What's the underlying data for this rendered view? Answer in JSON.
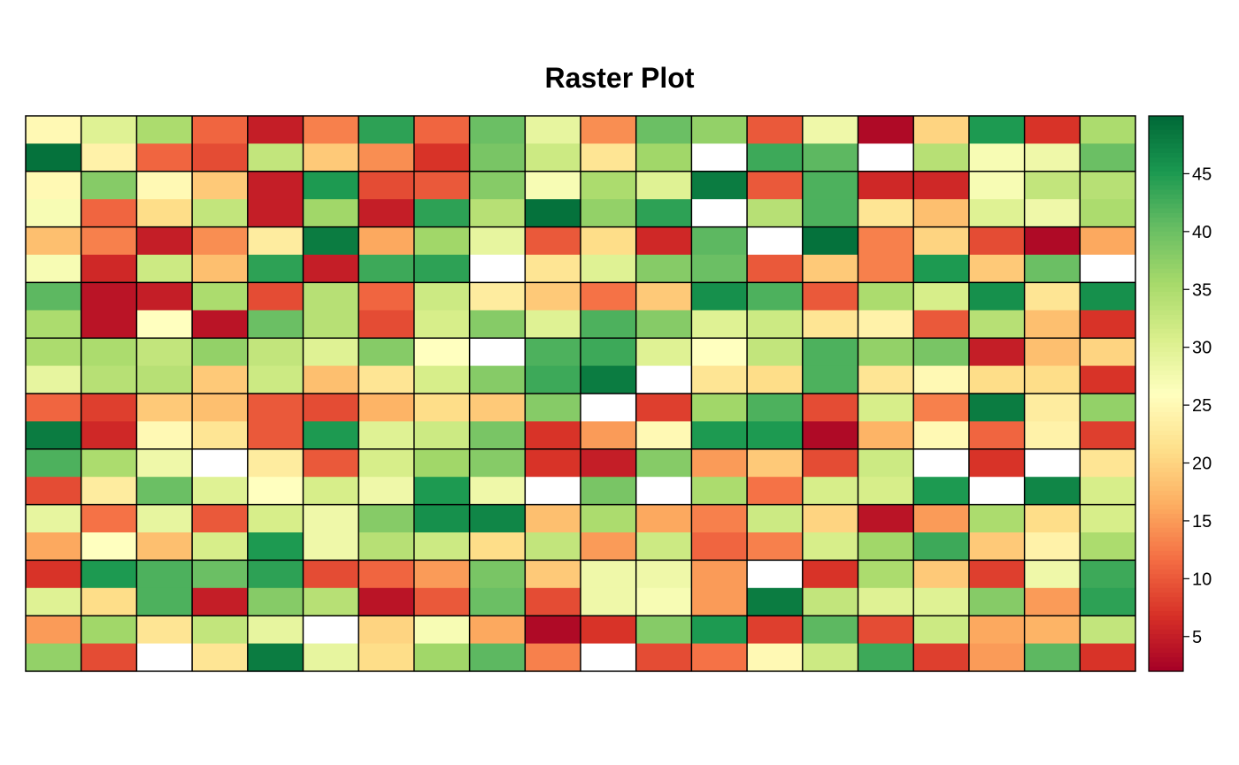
{
  "chart_data": {
    "type": "heatmap",
    "title": "Raster Plot",
    "xlabel": "",
    "ylabel": "",
    "rows": 20,
    "cols": 20,
    "value_range": [
      2,
      50
    ],
    "missing_color": "#ffffff",
    "colorbar_ticks": [
      5,
      10,
      15,
      20,
      25,
      30,
      35,
      40,
      45
    ],
    "colorbar_tick_labels": [
      "5",
      "10",
      "15",
      "20",
      "25",
      "30",
      "35",
      "40",
      "45"
    ],
    "palette": [
      "#a50026",
      "#d73027",
      "#f46d43",
      "#fdae61",
      "#fee08b",
      "#ffffbf",
      "#d9ef8b",
      "#a6d96a",
      "#66bd63",
      "#1a9850",
      "#006837"
    ],
    "grid_blocks": {
      "rows": 10,
      "cols": 20
    },
    "values": [
      [
        25,
        30,
        35,
        11,
        5,
        13,
        44,
        11,
        40,
        29,
        14,
        40,
        37,
        10,
        28,
        3,
        20,
        45,
        7,
        35
      ],
      [
        49,
        24,
        11,
        9,
        33,
        19,
        14,
        7,
        39,
        32,
        22,
        36,
        null,
        43,
        41,
        null,
        34,
        27,
        28,
        40
      ],
      [
        25,
        38,
        25,
        19,
        5,
        45,
        9,
        10,
        38,
        27,
        35,
        30,
        48,
        10,
        42,
        6,
        6,
        27,
        33,
        34
      ],
      [
        27,
        11,
        21,
        33,
        5,
        36,
        5,
        44,
        34,
        49,
        37,
        44,
        null,
        34,
        42,
        22,
        18,
        30,
        28,
        35
      ],
      [
        18,
        13,
        5,
        14,
        23,
        48,
        16,
        36,
        29,
        10,
        21,
        6,
        41,
        null,
        49,
        13,
        20,
        9,
        3,
        16
      ],
      [
        27,
        6,
        32,
        18,
        44,
        5,
        43,
        44,
        null,
        22,
        30,
        38,
        40,
        10,
        19,
        13,
        45,
        19,
        40,
        null
      ],
      [
        41,
        4,
        5,
        35,
        9,
        34,
        11,
        32,
        23,
        19,
        12,
        19,
        46,
        42,
        10,
        35,
        31,
        46,
        22,
        46
      ],
      [
        35,
        4,
        26,
        4,
        40,
        34,
        9,
        31,
        38,
        30,
        42,
        38,
        30,
        32,
        22,
        24,
        10,
        34,
        18,
        7
      ],
      [
        35,
        35,
        33,
        37,
        33,
        30,
        38,
        26,
        null,
        42,
        43,
        30,
        26,
        33,
        42,
        37,
        39,
        5,
        18,
        20
      ],
      [
        29,
        34,
        34,
        19,
        32,
        18,
        22,
        31,
        38,
        43,
        48,
        null,
        22,
        21,
        42,
        22,
        25,
        21,
        21,
        7
      ],
      [
        11,
        8,
        19,
        18,
        10,
        9,
        17,
        21,
        19,
        38,
        null,
        8,
        36,
        42,
        9,
        31,
        13,
        48,
        23,
        37
      ],
      [
        48,
        6,
        25,
        22,
        10,
        45,
        30,
        32,
        39,
        7,
        15,
        25,
        45,
        45,
        3,
        17,
        25,
        11,
        24,
        8
      ],
      [
        42,
        35,
        28,
        null,
        23,
        10,
        31,
        36,
        38,
        7,
        5,
        38,
        15,
        19,
        9,
        32,
        null,
        7,
        null,
        22
      ],
      [
        9,
        23,
        40,
        30,
        26,
        31,
        28,
        45,
        28,
        null,
        39,
        null,
        35,
        12,
        31,
        31,
        45,
        null,
        47,
        31
      ],
      [
        29,
        12,
        29,
        10,
        31,
        28,
        38,
        46,
        47,
        18,
        35,
        16,
        13,
        32,
        20,
        4,
        15,
        35,
        21,
        31
      ],
      [
        16,
        26,
        18,
        31,
        45,
        28,
        34,
        32,
        21,
        33,
        15,
        32,
        11,
        13,
        31,
        36,
        43,
        19,
        24,
        35
      ],
      [
        7,
        45,
        42,
        40,
        44,
        9,
        11,
        15,
        39,
        19,
        28,
        28,
        15,
        null,
        7,
        35,
        19,
        8,
        28,
        43
      ],
      [
        30,
        21,
        42,
        5,
        38,
        34,
        4,
        10,
        40,
        9,
        28,
        27,
        15,
        48,
        33,
        30,
        30,
        38,
        15,
        44
      ],
      [
        15,
        36,
        22,
        33,
        29,
        null,
        20,
        27,
        16,
        3,
        7,
        38,
        45,
        8,
        41,
        9,
        32,
        16,
        17,
        33
      ],
      [
        37,
        9,
        null,
        22,
        48,
        29,
        21,
        36,
        41,
        13,
        null,
        9,
        12,
        25,
        32,
        43,
        8,
        15,
        41,
        7
      ]
    ]
  }
}
